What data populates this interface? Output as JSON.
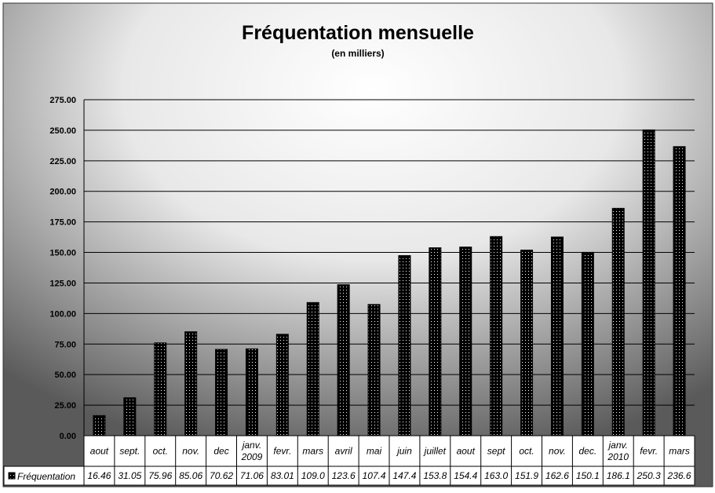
{
  "chart_data": {
    "type": "bar",
    "title": "Fréquentation mensuelle",
    "subtitle": "(en milliers)",
    "ylim": [
      0,
      275
    ],
    "y_ticks": [
      "0.00",
      "25.00",
      "50.00",
      "75.00",
      "100.00",
      "125.00",
      "150.00",
      "175.00",
      "200.00",
      "225.00",
      "250.00",
      "275.00"
    ],
    "grid": true,
    "legend_position": "bottom-left data table",
    "categories": [
      [
        "aout"
      ],
      [
        "sept."
      ],
      [
        "oct."
      ],
      [
        "nov."
      ],
      [
        "dec"
      ],
      [
        "janv.",
        "2009"
      ],
      [
        "fevr."
      ],
      [
        "mars"
      ],
      [
        "avril"
      ],
      [
        "mai"
      ],
      [
        "juin"
      ],
      [
        "juillet"
      ],
      [
        "aout"
      ],
      [
        "sept"
      ],
      [
        "oct."
      ],
      [
        "nov."
      ],
      [
        "dec."
      ],
      [
        "janv.",
        "2010"
      ],
      [
        "fevr."
      ],
      [
        "mars"
      ]
    ],
    "series": [
      {
        "name": "Fréquentation",
        "values": [
          16.46,
          31.05,
          75.96,
          85.06,
          70.62,
          71.06,
          83.01,
          109.0,
          123.6,
          107.4,
          147.4,
          153.8,
          154.4,
          163.0,
          151.9,
          162.6,
          150.1,
          186.1,
          250.3,
          236.6
        ],
        "table_labels": [
          "16.46",
          "31.05",
          "75.96",
          "85.06",
          "70.62",
          "71.06",
          "83.01",
          "109.0",
          "123.6",
          "107.4",
          "147.4",
          "153.8",
          "154.4",
          "163.0",
          "151.9",
          "162.6",
          "150.1",
          "186.1",
          "250.3",
          "236.6"
        ]
      }
    ],
    "colors": {
      "bar": "#000000",
      "bar_dots": "#ffffff",
      "grid": "#000000",
      "table_fill": "#ffffff"
    }
  }
}
